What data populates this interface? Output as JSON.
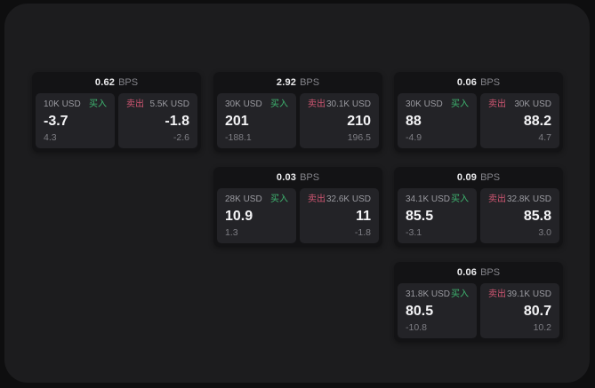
{
  "labels": {
    "bps": "BPS",
    "buy": "买入",
    "sell": "卖出"
  },
  "colors": {
    "background": "#0e0e0f",
    "panel_bg": "#1c1c1e",
    "card_bg": "#131315",
    "tile_bg": "#232327",
    "buy_green": "#3fb771",
    "sell_red": "#d05672"
  },
  "cards": [
    {
      "bps": "0.62",
      "buy": {
        "amount": "10K USD",
        "value": "-3.7",
        "sub": "4.3"
      },
      "sell": {
        "amount": "5.5K USD",
        "value": "-1.8",
        "sub": "-2.6"
      }
    },
    {
      "bps": "2.92",
      "buy": {
        "amount": "30K USD",
        "value": "201",
        "sub": "-188.1"
      },
      "sell": {
        "amount": "30.1K USD",
        "value": "210",
        "sub": "196.5"
      }
    },
    {
      "bps": "0.06",
      "buy": {
        "amount": "30K USD",
        "value": "88",
        "sub": "-4.9"
      },
      "sell": {
        "amount": "30K USD",
        "value": "88.2",
        "sub": "4.7"
      }
    },
    {
      "bps": "0.03",
      "buy": {
        "amount": "28K USD",
        "value": "10.9",
        "sub": "1.3"
      },
      "sell": {
        "amount": "32.6K USD",
        "value": "11",
        "sub": "-1.8"
      }
    },
    {
      "bps": "0.09",
      "buy": {
        "amount": "34.1K USD",
        "value": "85.5",
        "sub": "-3.1"
      },
      "sell": {
        "amount": "32.8K USD",
        "value": "85.8",
        "sub": "3.0"
      }
    },
    {
      "bps": "0.06",
      "buy": {
        "amount": "31.8K USD",
        "value": "80.5",
        "sub": "-10.8"
      },
      "sell": {
        "amount": "39.1K USD",
        "value": "80.7",
        "sub": "10.2"
      }
    }
  ]
}
